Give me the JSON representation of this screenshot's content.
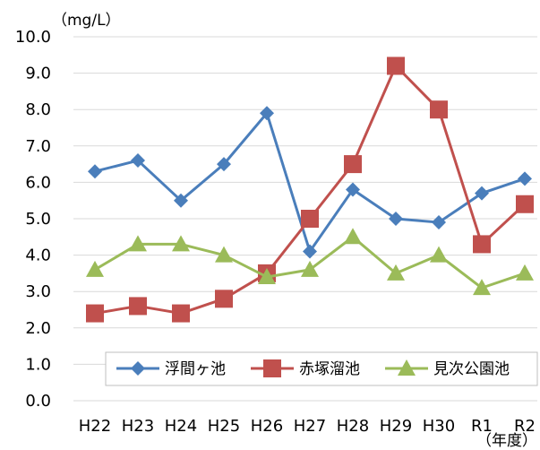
{
  "chart_data": {
    "type": "line",
    "ylabel": "（mg/L）",
    "xlabel": "（年度）",
    "ylim": [
      0,
      10
    ],
    "yticks": [
      "0.0",
      "1.0",
      "2.0",
      "3.0",
      "4.0",
      "5.0",
      "6.0",
      "7.0",
      "8.0",
      "9.0",
      "10.0"
    ],
    "categories": [
      "H22",
      "H23",
      "H24",
      "H25",
      "H26",
      "H27",
      "H28",
      "H29",
      "H30",
      "R1",
      "R2"
    ],
    "grid": true,
    "legend_position": "bottom-inside",
    "series": [
      {
        "name": "浮間ヶ池",
        "color": "#4a7ebb",
        "marker": "diamond",
        "values": [
          6.3,
          6.6,
          5.5,
          6.5,
          7.9,
          4.1,
          5.8,
          5.0,
          4.9,
          5.7,
          6.1
        ]
      },
      {
        "name": "赤塚溜池",
        "color": "#c0504d",
        "marker": "square",
        "values": [
          2.4,
          2.6,
          2.4,
          2.8,
          3.5,
          5.0,
          6.5,
          9.2,
          8.0,
          4.3,
          5.4
        ]
      },
      {
        "name": "見次公園池",
        "color": "#9bbb59",
        "marker": "triangle",
        "values": [
          3.6,
          4.3,
          4.3,
          4.0,
          3.4,
          3.6,
          4.5,
          3.5,
          4.0,
          3.1,
          3.5
        ]
      }
    ]
  }
}
